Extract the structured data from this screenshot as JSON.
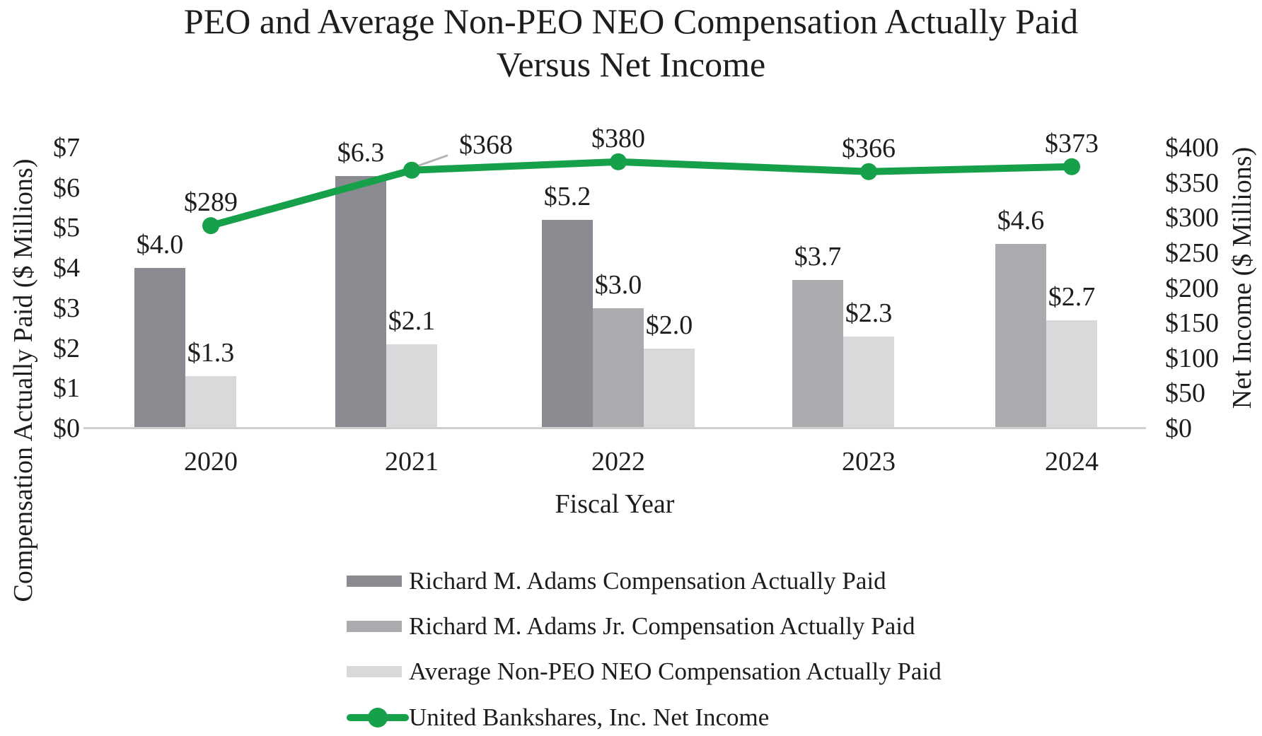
{
  "title": {
    "line1": "PEO and Average Non-PEO NEO Compensation Actually Paid",
    "line2": "Versus Net Income"
  },
  "chart_data": {
    "type": "bar+line",
    "categories": [
      "2020",
      "2021",
      "2022",
      "2023",
      "2024"
    ],
    "x_axis": {
      "title": "Fiscal Year"
    },
    "left_axis": {
      "title": "Compensation Actually Paid ($ Millions)",
      "min": 0,
      "max": 7,
      "tick_step": 1,
      "ticks": [
        "$0",
        "$1",
        "$2",
        "$3",
        "$4",
        "$5",
        "$6",
        "$7"
      ]
    },
    "right_axis": {
      "title": "Net Income ($ Millions)",
      "min": 0,
      "max": 400,
      "tick_step": 50,
      "ticks": [
        "$0",
        "$50",
        "$100",
        "$150",
        "$200",
        "$250",
        "$300",
        "$350",
        "$400"
      ]
    },
    "gridlines": "none",
    "legend_position": "bottom-left",
    "series": [
      {
        "name": "Richard M. Adams Compensation Actually Paid",
        "type": "bar",
        "axis": "left",
        "color": "#8a8a91",
        "values": [
          4.0,
          6.3,
          5.2,
          null,
          null
        ],
        "value_labels": [
          "$4.0",
          "$6.3",
          "$5.2",
          null,
          null
        ]
      },
      {
        "name": "Richard M. Adams Jr. Compensation Actually Paid",
        "type": "bar",
        "axis": "left",
        "color": "#aaaaaf",
        "values": [
          null,
          null,
          3.0,
          3.7,
          4.6
        ],
        "value_labels": [
          null,
          null,
          "$3.0",
          "$3.7",
          "$4.6"
        ]
      },
      {
        "name": "Average Non-PEO NEO Compensation Actually Paid",
        "type": "bar",
        "axis": "left",
        "color": "#d9d9db",
        "values": [
          1.3,
          2.1,
          2.0,
          2.3,
          2.7
        ],
        "value_labels": [
          "$1.3",
          "$2.1",
          "$2.0",
          "$2.3",
          "$2.7"
        ]
      },
      {
        "name": "United Bankshares, Inc. Net Income",
        "type": "line",
        "axis": "right",
        "color": "#16a04a",
        "values": [
          289,
          368,
          380,
          366,
          373
        ],
        "value_labels": [
          "$289",
          "$368",
          "$380",
          "$366",
          "$373"
        ],
        "callout_label_index": 1
      }
    ]
  }
}
